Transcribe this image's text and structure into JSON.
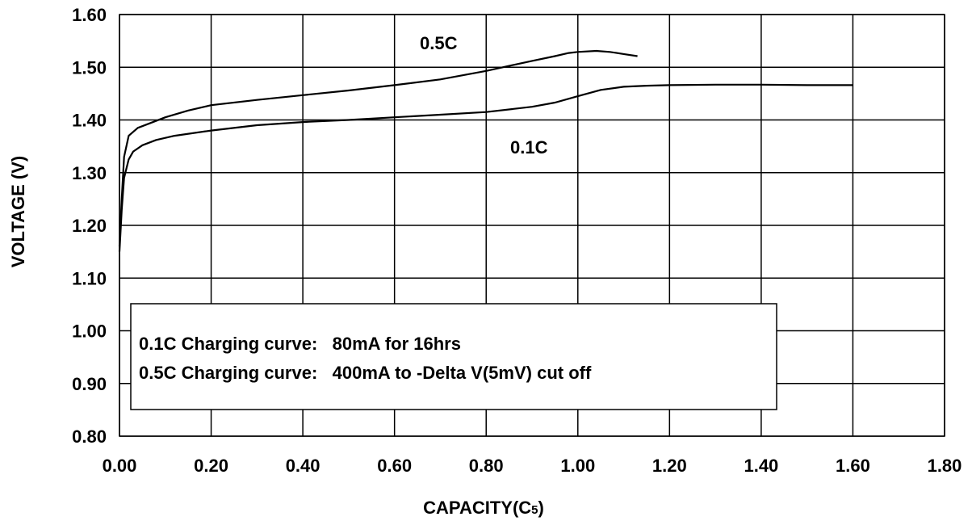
{
  "chart_data": {
    "type": "line",
    "xlabel": "CAPACITY(C",
    "xlabel_sub": "5",
    "xlabel_end": ")",
    "ylabel": "VOLTAGE (V)",
    "xlim": [
      0,
      1.8
    ],
    "ylim": [
      0.8,
      1.6
    ],
    "grid": true,
    "x_ticks": [
      "0.00",
      "0.20",
      "0.40",
      "0.60",
      "0.80",
      "1.00",
      "1.20",
      "1.40",
      "1.60",
      "1.80"
    ],
    "y_ticks": [
      "0.80",
      "0.90",
      "1.00",
      "1.10",
      "1.20",
      "1.30",
      "1.40",
      "1.50",
      "1.60"
    ],
    "series": [
      {
        "name": "0.5C",
        "color": "#000000",
        "x": [
          0.0,
          0.005,
          0.01,
          0.02,
          0.04,
          0.07,
          0.1,
          0.15,
          0.2,
          0.3,
          0.4,
          0.5,
          0.6,
          0.7,
          0.8,
          0.9,
          0.95,
          0.98,
          1.0,
          1.04,
          1.07,
          1.1,
          1.13
        ],
        "y": [
          1.16,
          1.25,
          1.33,
          1.37,
          1.385,
          1.395,
          1.405,
          1.418,
          1.428,
          1.438,
          1.447,
          1.456,
          1.466,
          1.477,
          1.493,
          1.512,
          1.521,
          1.527,
          1.529,
          1.531,
          1.529,
          1.525,
          1.521
        ]
      },
      {
        "name": "0.1C",
        "color": "#000000",
        "x": [
          0.0,
          0.005,
          0.01,
          0.02,
          0.03,
          0.05,
          0.08,
          0.12,
          0.2,
          0.3,
          0.4,
          0.5,
          0.6,
          0.7,
          0.8,
          0.9,
          0.95,
          1.0,
          1.05,
          1.1,
          1.15,
          1.2,
          1.3,
          1.4,
          1.5,
          1.6
        ],
        "y": [
          1.15,
          1.23,
          1.29,
          1.325,
          1.34,
          1.352,
          1.362,
          1.37,
          1.38,
          1.39,
          1.396,
          1.4,
          1.405,
          1.41,
          1.415,
          1.425,
          1.433,
          1.445,
          1.457,
          1.463,
          1.465,
          1.466,
          1.467,
          1.467,
          1.466,
          1.466
        ]
      }
    ],
    "annotations": [
      "0.1C Charging curve:   80mA for 16hrs",
      "0.5C Charging curve:   400mA to -Delta V(5mV) cut off"
    ]
  }
}
